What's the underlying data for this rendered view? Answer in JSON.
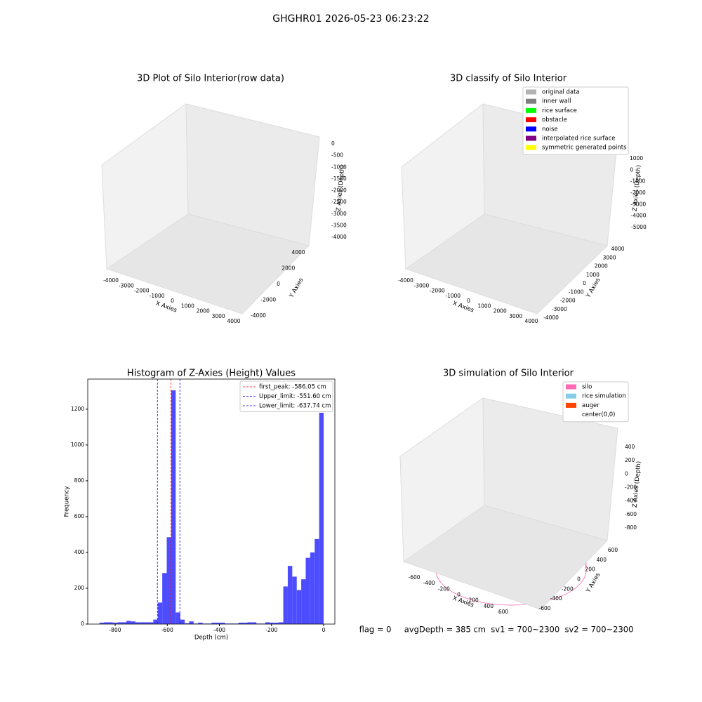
{
  "title": "GHGHR01 2026-05-23 06:23:22",
  "footer": "flag = 0     avgDepth = 385 cm  sv1 = 700~2300  sv2 = 700~2300",
  "chart_data": [
    {
      "type": "scatter3d",
      "title": "3D Plot of Silo Interior(row data)",
      "xlabel": "X Axies",
      "ylabel": "Y Axies",
      "zlabel": "Z Axies (Depth)",
      "xticks": [
        -4000,
        -3000,
        -2000,
        -1000,
        0,
        1000,
        2000,
        3000,
        4000
      ],
      "yticks": [
        -4000,
        -2000,
        0,
        2000,
        4000
      ],
      "zticks": [
        0,
        -500,
        -1000,
        -1500,
        -2000,
        -2500,
        -3000,
        -3500,
        -4000
      ]
    },
    {
      "type": "scatter3d",
      "title": "3D classify of Silo Interior",
      "xlabel": "X Axies",
      "ylabel": "Y Axies",
      "zlabel": "Z Axies (Depth)",
      "xticks": [
        -4000,
        -3000,
        -2000,
        -1000,
        0,
        1000,
        2000,
        3000,
        4000
      ],
      "yticks": [
        -4000,
        -3000,
        -2000,
        -1000,
        0,
        1000,
        2000,
        3000,
        4000
      ],
      "zticks": [
        1000,
        0,
        -1000,
        -2000,
        -3000,
        -4000,
        -5000
      ],
      "legend": [
        {
          "name": "original data",
          "color": "#b3b3b3"
        },
        {
          "name": "inner wall",
          "color": "#808080"
        },
        {
          "name": "rice surface",
          "color": "#00ff00"
        },
        {
          "name": "obstacle",
          "color": "#ff0000"
        },
        {
          "name": "noise",
          "color": "#0000ff"
        },
        {
          "name": "interpolated rice surface",
          "color": "#800080"
        },
        {
          "name": "symmetric generated points",
          "color": "#ffff00"
        }
      ]
    },
    {
      "type": "histogram",
      "title": "Histogram of Z-Axies (Height) Values",
      "xlabel": "Depth (cm)",
      "ylabel": "Frequency",
      "color": "#4d4dff",
      "bins": [
        -860,
        -842.8,
        -825.6,
        -808.4,
        -791.2,
        -774,
        -756.8,
        -739.6,
        -722.4,
        -705.2,
        -688,
        -670.8,
        -653.6,
        -636.4,
        -619.2,
        -602,
        -584.8,
        -567.6,
        -550.4,
        -533.2,
        -516,
        -498.8,
        -481.6,
        -464.4,
        -447.2,
        -430,
        -412.8,
        -395.6,
        -378.4,
        -361.2,
        -344,
        -326.8,
        -309.6,
        -292.4,
        -275.2,
        -258,
        -240.8,
        -223.6,
        -206.4,
        -189.2,
        -172,
        -154.8,
        -137.6,
        -120.4,
        -103.2,
        -86,
        -68.8,
        -51.6,
        -34.4,
        -17.2,
        0
      ],
      "values": [
        8,
        10,
        10,
        8,
        10,
        10,
        18,
        15,
        10,
        10,
        10,
        10,
        25,
        120,
        285,
        485,
        1305,
        65,
        25,
        5,
        15,
        3,
        8,
        3,
        3,
        8,
        8,
        8,
        3,
        3,
        3,
        8,
        8,
        10,
        10,
        3,
        3,
        10,
        8,
        8,
        10,
        210,
        325,
        265,
        190,
        250,
        370,
        400,
        475,
        1180
      ],
      "xlim": [
        -905,
        43
      ],
      "ylim": [
        0,
        1368
      ],
      "xticks": [
        -800,
        -600,
        -400,
        -200,
        0
      ],
      "yticks": [
        0,
        200,
        400,
        600,
        800,
        1000,
        1200
      ],
      "lines": [
        {
          "label": "first_peak: -586.05 cm",
          "value": -586.05,
          "color": "#ff0000"
        },
        {
          "label": "Upper_limit: -551.60 cm",
          "value": -551.6,
          "color": "#0000ff"
        },
        {
          "label": "Lower_limit: -637.74 cm",
          "value": -637.74,
          "color": "#0000ff"
        }
      ]
    },
    {
      "type": "surface3d",
      "title": "3D simulation of Silo Interior",
      "xlabel": "X Axies",
      "ylabel": "Y Axies",
      "zlabel": "Z Axies (Depth)",
      "xticks": [
        -600,
        -400,
        -200,
        0,
        200,
        400,
        600
      ],
      "yticks": [
        -600,
        -400,
        -200,
        0,
        200,
        400,
        600
      ],
      "zticks": [
        400,
        200,
        0,
        -200,
        -400,
        -600,
        -800
      ],
      "legend": [
        {
          "name": "silo",
          "color": "#ff69b4"
        },
        {
          "name": "rice simulation",
          "color": "#87ceeb"
        },
        {
          "name": "auger",
          "color": "#ff4500"
        },
        {
          "name": "center(0,0)",
          "color": "#ffffff"
        }
      ]
    }
  ]
}
